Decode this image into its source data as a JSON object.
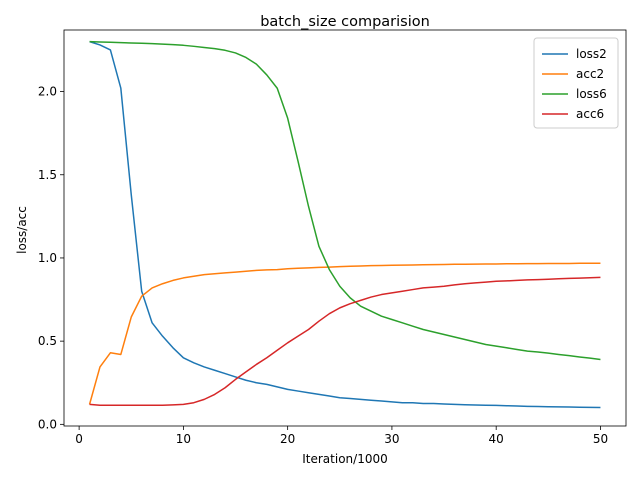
{
  "chart_data": {
    "type": "line",
    "title": "batch_size comparision",
    "xlabel": "Iteration/1000",
    "ylabel": "loss/acc",
    "xlim": [
      -1.45,
      52.45
    ],
    "ylim": [
      -0.01,
      2.37
    ],
    "xticks": [
      0,
      10,
      20,
      30,
      40,
      50
    ],
    "yticks": [
      0.0,
      0.5,
      1.0,
      1.5,
      2.0
    ],
    "ytick_labels": [
      "0.0",
      "0.5",
      "1.0",
      "1.5",
      "2.0"
    ],
    "grid": false,
    "legend_position": "upper-right",
    "x": [
      1,
      2,
      3,
      4,
      5,
      6,
      7,
      8,
      9,
      10,
      11,
      12,
      13,
      14,
      15,
      16,
      17,
      18,
      19,
      20,
      21,
      22,
      23,
      24,
      25,
      26,
      27,
      28,
      29,
      30,
      31,
      32,
      33,
      34,
      35,
      36,
      37,
      38,
      39,
      40,
      41,
      42,
      43,
      44,
      45,
      46,
      47,
      48,
      49,
      50
    ],
    "series": [
      {
        "name": "loss2",
        "color": "#1f77b4",
        "values": [
          2.3,
          2.28,
          2.25,
          2.02,
          1.38,
          0.8,
          0.61,
          0.53,
          0.46,
          0.4,
          0.37,
          0.345,
          0.325,
          0.305,
          0.285,
          0.265,
          0.25,
          0.24,
          0.225,
          0.21,
          0.2,
          0.19,
          0.18,
          0.17,
          0.16,
          0.155,
          0.15,
          0.145,
          0.14,
          0.135,
          0.13,
          0.13,
          0.125,
          0.125,
          0.122,
          0.12,
          0.118,
          0.116,
          0.115,
          0.114,
          0.112,
          0.11,
          0.108,
          0.107,
          0.106,
          0.105,
          0.104,
          0.103,
          0.102,
          0.101
        ]
      },
      {
        "name": "acc2",
        "color": "#ff7f0e",
        "values": [
          0.12,
          0.345,
          0.43,
          0.42,
          0.645,
          0.77,
          0.82,
          0.845,
          0.865,
          0.88,
          0.89,
          0.9,
          0.905,
          0.91,
          0.915,
          0.92,
          0.925,
          0.928,
          0.93,
          0.935,
          0.938,
          0.94,
          0.943,
          0.945,
          0.948,
          0.95,
          0.952,
          0.954,
          0.955,
          0.956,
          0.957,
          0.958,
          0.959,
          0.96,
          0.961,
          0.962,
          0.962,
          0.963,
          0.964,
          0.964,
          0.965,
          0.965,
          0.966,
          0.966,
          0.967,
          0.967,
          0.967,
          0.968,
          0.968,
          0.968
        ]
      },
      {
        "name": "loss6",
        "color": "#2ca02c",
        "values": [
          2.3,
          2.298,
          2.296,
          2.294,
          2.292,
          2.29,
          2.288,
          2.285,
          2.282,
          2.278,
          2.272,
          2.265,
          2.258,
          2.248,
          2.232,
          2.205,
          2.165,
          2.1,
          2.02,
          1.84,
          1.58,
          1.31,
          1.07,
          0.93,
          0.83,
          0.76,
          0.71,
          0.68,
          0.65,
          0.63,
          0.61,
          0.59,
          0.57,
          0.555,
          0.54,
          0.525,
          0.51,
          0.495,
          0.48,
          0.47,
          0.46,
          0.45,
          0.44,
          0.435,
          0.428,
          0.42,
          0.413,
          0.405,
          0.398,
          0.39
        ]
      },
      {
        "name": "acc6",
        "color": "#d62728",
        "values": [
          0.12,
          0.115,
          0.115,
          0.115,
          0.115,
          0.115,
          0.115,
          0.115,
          0.117,
          0.12,
          0.13,
          0.15,
          0.18,
          0.22,
          0.27,
          0.315,
          0.36,
          0.4,
          0.445,
          0.49,
          0.53,
          0.57,
          0.62,
          0.665,
          0.7,
          0.725,
          0.745,
          0.765,
          0.78,
          0.79,
          0.8,
          0.81,
          0.82,
          0.825,
          0.83,
          0.838,
          0.845,
          0.85,
          0.855,
          0.86,
          0.862,
          0.865,
          0.868,
          0.87,
          0.872,
          0.875,
          0.877,
          0.879,
          0.881,
          0.883
        ]
      }
    ]
  }
}
